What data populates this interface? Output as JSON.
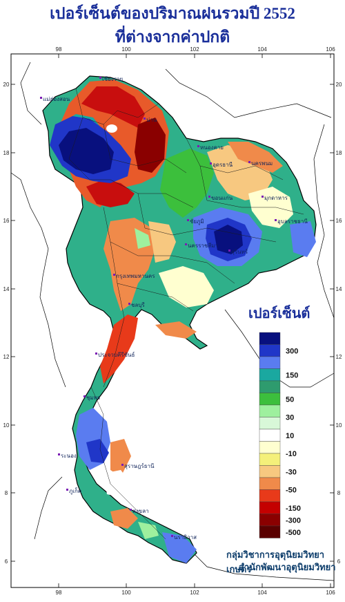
{
  "title": {
    "line1": "เปอร์เซ็นต์ของปริมาณฝนรวมปี 2552",
    "line2": "ที่ต่างจากค่าปกติ"
  },
  "legend": {
    "title": "เปอร์เซ็นต์",
    "colors": [
      "#08107e",
      "#2036c8",
      "#5a7cf0",
      "#1aa8a0",
      "#2e9b6e",
      "#3cbf3c",
      "#9ef09e",
      "#d8f8d8",
      "#ffffff",
      "#ffffd0",
      "#f4f07a",
      "#f7c880",
      "#f08a4a",
      "#e83a1a",
      "#c40000",
      "#8a0000",
      "#5a0000"
    ],
    "labels": [
      {
        "text": "300",
        "at": 1.5
      },
      {
        "text": "150",
        "at": 3.5
      },
      {
        "text": "50",
        "at": 5.5
      },
      {
        "text": "30",
        "at": 7.0
      },
      {
        "text": "10",
        "at": 8.5
      },
      {
        "text": "-10",
        "at": 10.0
      },
      {
        "text": "-30",
        "at": 11.5
      },
      {
        "text": "-50",
        "at": 13.0
      },
      {
        "text": "-150",
        "at": 14.5
      },
      {
        "text": "-300",
        "at": 15.5
      },
      {
        "text": "-500",
        "at": 16.5
      }
    ]
  },
  "axes": {
    "lon_ticks": [
      "98",
      "100",
      "102",
      "104",
      "106"
    ],
    "lat_ticks": [
      "20",
      "18",
      "16",
      "14",
      "12",
      "10",
      "8",
      "6"
    ]
  },
  "places": [
    "เชียงราย",
    "น่าน",
    "แม่ฮ่องสอน",
    "หนองคาย",
    "อุดรธานี",
    "นครพนม",
    "ขอนแก่น",
    "มุกดาหาร",
    "ชัยภูมิ",
    "อุบลราชธานี",
    "นครราชสีมา",
    "สุรินทร์",
    "กรุงเทพมหานคร",
    "ชลบุรี",
    "ประจวบคีรีขันธ์",
    "ชุมพร",
    "ระนอง",
    "สุราษฎร์ธานี",
    "ภูเก็ต",
    "สงขลา",
    "นราธิวาส"
  ],
  "credit": {
    "line1": "กลุ่มวิชาการอุตุนิยมวิทยาเกษตร",
    "line2": "สำนักพัฒนาอุตุนิยมวิทยา"
  }
}
